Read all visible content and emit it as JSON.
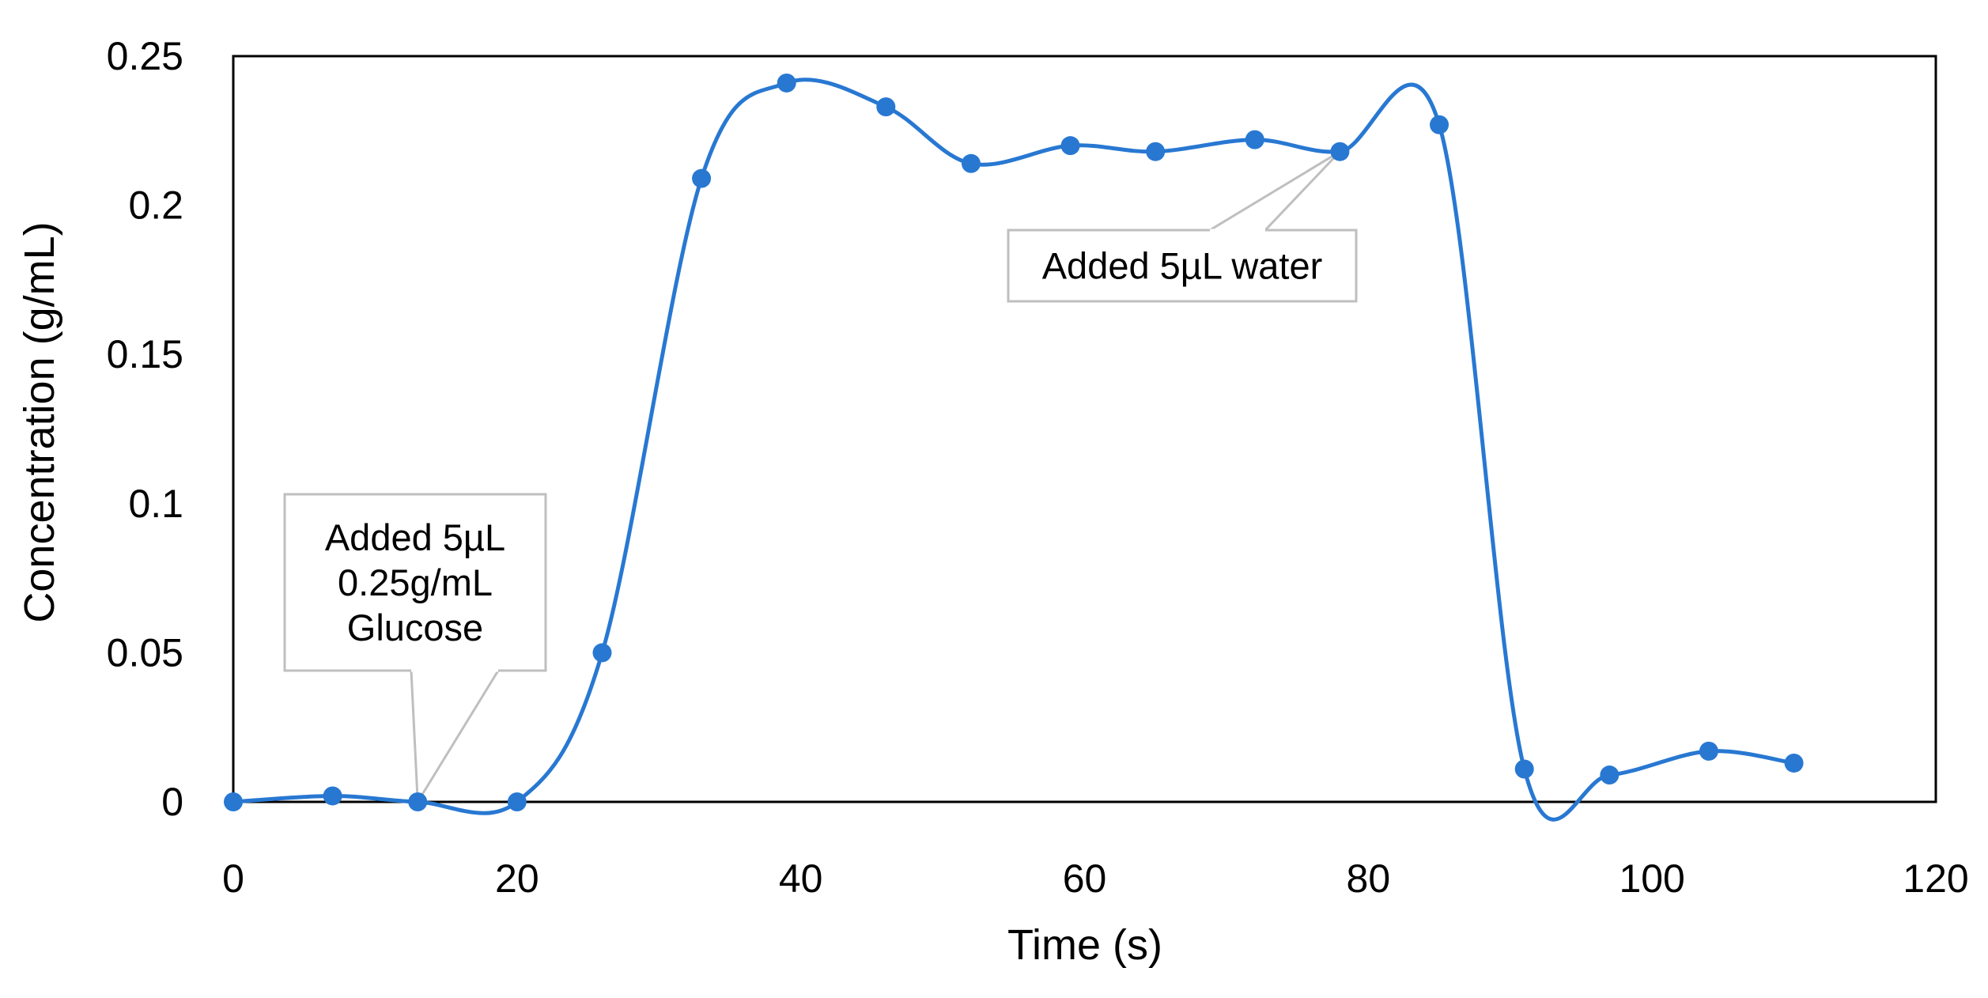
{
  "chart_data": {
    "type": "line",
    "title": "",
    "xlabel": "Time (s)",
    "ylabel": "Concentration (g/mL)",
    "xlim": [
      0,
      120
    ],
    "ylim": [
      0,
      0.25
    ],
    "x_ticks": [
      0,
      20,
      40,
      60,
      80,
      100,
      120
    ],
    "y_ticks": [
      0,
      0.05,
      0.1,
      0.15,
      0.2,
      0.25
    ],
    "x_tick_labels": [
      "0",
      "20",
      "40",
      "60",
      "80",
      "100",
      "120"
    ],
    "y_tick_labels": [
      "0",
      "0.05",
      "0.1",
      "0.15",
      "0.2",
      "0.25"
    ],
    "grid": false,
    "smooth": true,
    "series": [
      {
        "name": "Concentration",
        "color": "#2878D2",
        "x": [
          0,
          7,
          13,
          20,
          26,
          33,
          39,
          46,
          52,
          59,
          65,
          72,
          78,
          85,
          91,
          97,
          104,
          110
        ],
        "y": [
          0,
          0.002,
          0,
          0,
          0.05,
          0.209,
          0.241,
          0.233,
          0.214,
          0.22,
          0.218,
          0.222,
          0.218,
          0.227,
          0.011,
          0.009,
          0.017,
          0.013
        ]
      }
    ],
    "annotations": [
      {
        "name": "glucose-callout",
        "lines": [
          "Added 5µL",
          "0.25g/mL",
          "Glucose"
        ],
        "target": {
          "x": 13,
          "y": 0
        }
      },
      {
        "name": "water-callout",
        "lines": [
          "Added 5µL water"
        ],
        "target": {
          "x": 78,
          "y": 0.218
        }
      }
    ]
  }
}
